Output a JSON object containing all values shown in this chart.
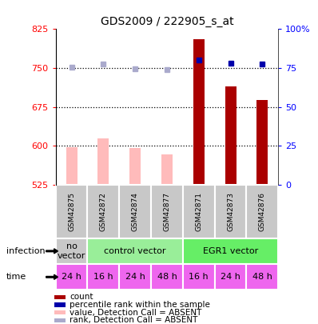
{
  "title": "GDS2009 / 222905_s_at",
  "samples": [
    "GSM42875",
    "GSM42872",
    "GSM42874",
    "GSM42877",
    "GSM42871",
    "GSM42873",
    "GSM42876"
  ],
  "bar_values": [
    597,
    614,
    596,
    583,
    805,
    715,
    688
  ],
  "bar_absent": [
    true,
    true,
    true,
    true,
    false,
    false,
    false
  ],
  "rank_values": [
    75.5,
    77.5,
    74.5,
    74,
    80,
    78,
    77.5
  ],
  "rank_absent": [
    true,
    true,
    true,
    true,
    false,
    false,
    false
  ],
  "ylim_left": [
    525,
    825
  ],
  "ylim_right": [
    0,
    100
  ],
  "yticks_left": [
    525,
    600,
    675,
    750,
    825
  ],
  "yticks_right": [
    0,
    25,
    50,
    75,
    100
  ],
  "ytick_labels_right": [
    "0",
    "25",
    "50",
    "75",
    "100%"
  ],
  "hlines": [
    600,
    675,
    750
  ],
  "infection_groups": [
    {
      "label": "no\nvector",
      "start": 0,
      "end": 1,
      "color": "#c8c8c8"
    },
    {
      "label": "control vector",
      "start": 1,
      "end": 4,
      "color": "#99ee99"
    },
    {
      "label": "EGR1 vector",
      "start": 4,
      "end": 7,
      "color": "#66ee66"
    }
  ],
  "time_labels": [
    "24 h",
    "16 h",
    "24 h",
    "48 h",
    "16 h",
    "24 h",
    "48 h"
  ],
  "time_color": "#ee66ee",
  "bar_color_present": "#aa0000",
  "bar_color_absent": "#ffbbbb",
  "rank_color_present": "#0000aa",
  "rank_color_absent": "#aaaacc",
  "legend_items": [
    {
      "color": "#aa0000",
      "label": "count"
    },
    {
      "color": "#0000aa",
      "label": "percentile rank within the sample"
    },
    {
      "color": "#ffbbbb",
      "label": "value, Detection Call = ABSENT"
    },
    {
      "color": "#aaaacc",
      "label": "rank, Detection Call = ABSENT"
    }
  ],
  "infection_label": "infection",
  "time_label": "time",
  "sample_box_color": "#c8c8c8",
  "bar_width": 0.35
}
